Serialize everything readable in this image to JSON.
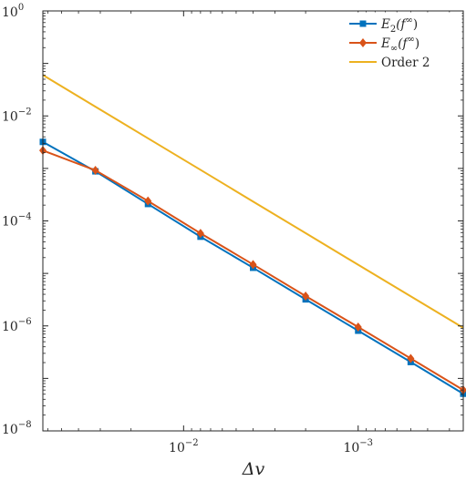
{
  "chart_data": {
    "type": "line",
    "xscale": "log",
    "yscale": "log",
    "x_reversed": true,
    "xlim": [
      0.064,
      0.00025
    ],
    "ylim": [
      1e-08,
      1
    ],
    "xlabel": "Δv",
    "ylabel": "",
    "x_ticks": [
      {
        "value": 0.01,
        "base": "10",
        "exp": "−2"
      },
      {
        "value": 0.001,
        "base": "10",
        "exp": "−3"
      }
    ],
    "y_ticks": [
      {
        "value": 1,
        "base": "10",
        "exp": "0"
      },
      {
        "value": 0.01,
        "base": "10",
        "exp": "−2"
      },
      {
        "value": 0.0001,
        "base": "10",
        "exp": "−4"
      },
      {
        "value": 1e-06,
        "base": "10",
        "exp": "−6"
      },
      {
        "value": 1e-08,
        "base": "10",
        "exp": "−8"
      }
    ],
    "grid": false,
    "legend_position": "top-right",
    "x": [
      0.064,
      0.032,
      0.016,
      0.008,
      0.004,
      0.002,
      0.001,
      0.0005,
      0.00025
    ],
    "series": [
      {
        "name": "E2(f∞)",
        "legend": {
          "main": "E",
          "sub": "2",
          "arg": "(f",
          "sup": "∞",
          "close": ")"
        },
        "color": "#0072BD",
        "marker": "square",
        "values": [
          0.0032,
          0.00088,
          0.00021,
          5e-05,
          1.28e-05,
          3.2e-06,
          8.1e-07,
          2.05e-07,
          5.1e-08
        ]
      },
      {
        "name": "E∞(f∞)",
        "legend": {
          "main": "E",
          "sub": "∞",
          "arg": "(f",
          "sup": "∞",
          "close": ")"
        },
        "color": "#D95319",
        "marker": "diamond",
        "values": [
          0.0022,
          0.00092,
          0.00024,
          5.8e-05,
          1.48e-05,
          3.7e-06,
          9.5e-07,
          2.4e-07,
          6e-08
        ]
      },
      {
        "name": "Order 2",
        "legend": {
          "text": "Order 2"
        },
        "color": "#EDB120",
        "marker": "none",
        "values": [
          0.06,
          0.015,
          0.00375,
          0.00094,
          0.000234,
          5.86e-05,
          1.46e-05,
          3.66e-06,
          9.2e-07
        ]
      }
    ]
  }
}
